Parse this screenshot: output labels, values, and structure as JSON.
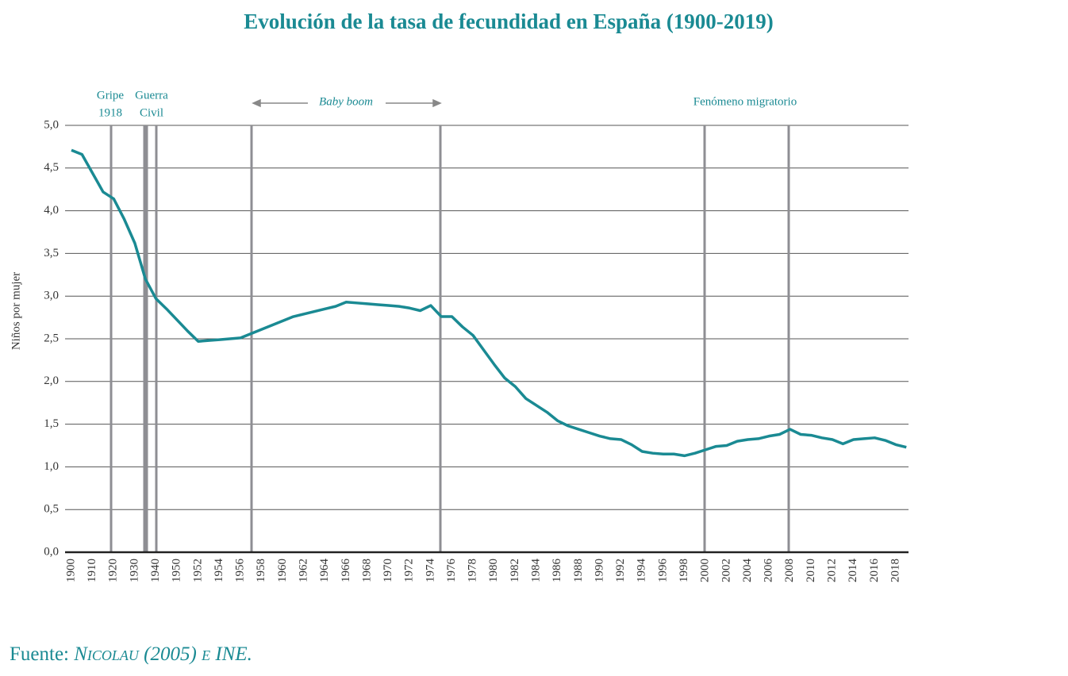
{
  "chart_data": {
    "type": "line",
    "title": "Evolución de la tasa de fecundidad en España (1900-2019)",
    "ylabel": "Niños por mujer",
    "categories": [
      "1900",
      null,
      "1910",
      null,
      "1920",
      null,
      "1930",
      null,
      "1940",
      null,
      "1950",
      null,
      "1952",
      null,
      "1954",
      null,
      "1956",
      null,
      "1958",
      null,
      "1960",
      null,
      "1962",
      null,
      "1964",
      null,
      "1966",
      null,
      "1968",
      null,
      "1970",
      null,
      "1972",
      null,
      "1974",
      null,
      "1976",
      null,
      "1978",
      null,
      "1980",
      null,
      "1982",
      null,
      "1984",
      null,
      "1986",
      null,
      "1988",
      null,
      "1990",
      null,
      "1992",
      null,
      "1994",
      null,
      "1996",
      null,
      "1998",
      null,
      "2000",
      null,
      "2002",
      null,
      "2004",
      null,
      "2006",
      null,
      "2008",
      null,
      "2010",
      null,
      "2012",
      null,
      "2014",
      null,
      "2016",
      null,
      "2018",
      null
    ],
    "series": [
      {
        "name": "Tasa de fecundidad",
        "color": "#1a8a93",
        "values": [
          4.71,
          4.66,
          4.44,
          4.22,
          4.14,
          3.9,
          3.62,
          3.2,
          2.97,
          2.85,
          2.72,
          2.59,
          2.47,
          2.48,
          2.49,
          2.5,
          2.51,
          2.56,
          2.61,
          2.66,
          2.71,
          2.76,
          2.79,
          2.82,
          2.85,
          2.88,
          2.93,
          2.92,
          2.91,
          2.9,
          2.89,
          2.88,
          2.86,
          2.83,
          2.89,
          2.76,
          2.76,
          2.64,
          2.54,
          2.37,
          2.2,
          2.04,
          1.94,
          1.8,
          1.72,
          1.64,
          1.54,
          1.48,
          1.44,
          1.4,
          1.36,
          1.33,
          1.32,
          1.26,
          1.18,
          1.16,
          1.15,
          1.15,
          1.13,
          1.16,
          1.2,
          1.24,
          1.25,
          1.3,
          1.32,
          1.33,
          1.36,
          1.38,
          1.44,
          1.38,
          1.37,
          1.34,
          1.32,
          1.27,
          1.32,
          1.33,
          1.34,
          1.31,
          1.26,
          1.23
        ]
      }
    ],
    "ylim": [
      0,
      5
    ],
    "yticks": [
      {
        "value": 0,
        "label": "0,0"
      },
      {
        "value": 0.5,
        "label": "0,5"
      },
      {
        "value": 1,
        "label": "1,0"
      },
      {
        "value": 1.5,
        "label": "1,5"
      },
      {
        "value": 2,
        "label": "2,0"
      },
      {
        "value": 2.5,
        "label": "2,5"
      },
      {
        "value": 3,
        "label": "3,0"
      },
      {
        "value": 3.5,
        "label": "3,5"
      },
      {
        "value": 4,
        "label": "4,0"
      },
      {
        "value": 4.5,
        "label": "4,5"
      },
      {
        "value": 5,
        "label": "5,0"
      }
    ],
    "grid": true,
    "annotations": {
      "gripe": [
        "Gripe",
        "1918"
      ],
      "guerra": [
        "Guerra",
        "Civil"
      ],
      "baby_boom": "Baby boom",
      "migratorio": "Fenómeno migratorio"
    },
    "source_label": "Fuente:",
    "source_ref": "Nicolau (2005) e INE."
  }
}
